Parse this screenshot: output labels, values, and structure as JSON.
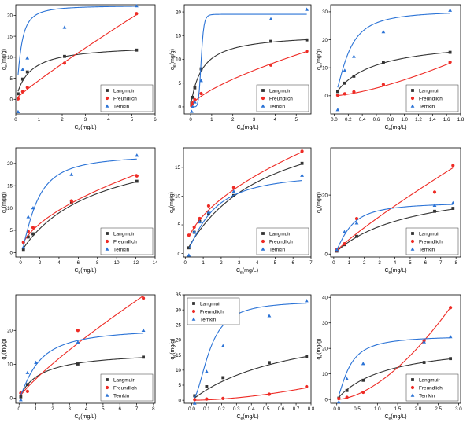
{
  "colors": {
    "Langmuir": "#333333",
    "Freundlich": "#ee2b25",
    "Temkin": "#2b73d6"
  },
  "chart_data": [
    {
      "type": "scatter",
      "x_label_main": "C",
      "x_label_sub": "e",
      "x_label_unit": "(mg/L)",
      "y_label_main": "q",
      "y_label_sub": "e",
      "y_label_unit": "(mg/g)",
      "xlim": [
        0,
        6
      ],
      "ylim": [
        -3.5,
        22.5
      ],
      "xticks": [
        0,
        1,
        2,
        3,
        4,
        5,
        6
      ],
      "yticks": [
        0,
        5,
        10,
        15,
        20
      ],
      "legend_position": "bottom-right",
      "series": [
        {
          "name": "Langmuir",
          "marker": "square",
          "x": [
            0.1,
            0.3,
            0.5,
            2.1,
            5.2
          ],
          "y": [
            1.3,
            4.8,
            6.5,
            10.2,
            11.7
          ],
          "curve": {
            "kind": "langmuir",
            "qm": 13.0,
            "K": 1.7
          }
        },
        {
          "name": "Freundlich",
          "marker": "circle",
          "x": [
            0.1,
            0.3,
            0.5,
            2.1,
            5.2
          ],
          "y": [
            0.1,
            1.8,
            2.8,
            8.6,
            20.4
          ],
          "curve": {
            "kind": "freundlich",
            "Kf": 4.5,
            "n": 1.1
          }
        },
        {
          "name": "Temkin",
          "marker": "triangle",
          "x": [
            0.1,
            0.3,
            0.5,
            2.1,
            5.2
          ],
          "y": [
            -3.0,
            7.1,
            9.8,
            17.1,
            22.2
          ],
          "curve": {
            "kind": "logistic",
            "A": 22.3,
            "k": 0.2,
            "p": 1.5
          }
        }
      ]
    },
    {
      "type": "scatter",
      "x_label_main": "C",
      "x_label_sub": "e",
      "x_label_unit": "(mg/L)",
      "y_label_main": "q",
      "y_label_sub": "e",
      "y_label_unit": "(mg/g)",
      "xlim": [
        -0.3,
        5.7
      ],
      "ylim": [
        -1.5,
        21.5
      ],
      "xticks": [
        0,
        1,
        2,
        3,
        4,
        5
      ],
      "yticks": [
        0,
        5,
        10,
        15,
        20
      ],
      "legend_position": "bottom-right",
      "series": [
        {
          "name": "Langmuir",
          "marker": "square",
          "x": [
            0.05,
            0.1,
            0.2,
            0.5,
            3.8,
            5.5
          ],
          "y": [
            0.8,
            2.0,
            4.0,
            8.0,
            13.8,
            14.1
          ],
          "curve": {
            "kind": "langmuir",
            "qm": 15.5,
            "K": 1.9
          }
        },
        {
          "name": "Freundlich",
          "marker": "circle",
          "x": [
            0.05,
            0.1,
            0.2,
            0.5,
            3.8,
            5.5
          ],
          "y": [
            0.2,
            0.8,
            1.5,
            2.8,
            8.8,
            11.7
          ],
          "curve": {
            "kind": "freundlich",
            "Kf": 3.6,
            "n": 1.45
          }
        },
        {
          "name": "Temkin",
          "marker": "triangle",
          "x": [
            0.05,
            0.1,
            0.2,
            0.5,
            3.8,
            5.5
          ],
          "y": [
            -1.0,
            0.0,
            1.0,
            5.5,
            18.5,
            20.5
          ],
          "curve": {
            "kind": "logistic",
            "A": 19.5,
            "k": 0.5,
            "p": 8
          }
        }
      ]
    },
    {
      "type": "scatter",
      "x_label_main": "C",
      "x_label_sub": "e",
      "x_label_unit": "(mg/L)",
      "y_label_main": "q",
      "y_label_sub": "e",
      "y_label_unit": "(mg/g)",
      "xlim": [
        -0.05,
        1.8
      ],
      "ylim": [
        -6.5,
        32.5
      ],
      "xticks": [
        0.0,
        0.2,
        0.4,
        0.6,
        0.8,
        1.0,
        1.2,
        1.4,
        1.6,
        1.8
      ],
      "yticks": [
        0,
        10,
        20,
        30
      ],
      "legend_position": "bottom-right",
      "series": [
        {
          "name": "Langmuir",
          "marker": "square",
          "x": [
            0.05,
            0.15,
            0.28,
            0.7,
            1.65
          ],
          "y": [
            1.5,
            4.5,
            7.0,
            11.8,
            15.5
          ],
          "curve": {
            "kind": "langmuir",
            "qm": 20.5,
            "K": 1.9
          }
        },
        {
          "name": "Freundlich",
          "marker": "circle",
          "x": [
            0.05,
            0.15,
            0.28,
            0.7,
            1.65
          ],
          "y": [
            0.2,
            0.7,
            1.4,
            4.0,
            12.0
          ],
          "curve": {
            "kind": "freundlich",
            "Kf": 5.7,
            "n": 0.7
          }
        },
        {
          "name": "Temkin",
          "marker": "triangle",
          "x": [
            0.05,
            0.15,
            0.28,
            0.7,
            1.65
          ],
          "y": [
            -5.0,
            9.0,
            14.0,
            22.8,
            30.5
          ],
          "curve": {
            "kind": "logistic",
            "A": 30.5,
            "k": 0.2,
            "p": 1.6
          }
        }
      ]
    },
    {
      "type": "scatter",
      "x_label_main": "C",
      "x_label_sub": "e",
      "x_label_unit": "(mg/L)",
      "y_label_main": "q",
      "y_label_sub": "e",
      "y_label_unit": "(mg/g)",
      "xlim": [
        -0.5,
        14
      ],
      "ylim": [
        -1,
        23.5
      ],
      "xticks": [
        0,
        2,
        4,
        6,
        8,
        10,
        12,
        14
      ],
      "yticks": [
        0,
        5,
        10,
        15,
        20
      ],
      "legend_position": "bottom-right",
      "series": [
        {
          "name": "Langmuir",
          "marker": "square",
          "x": [
            0.3,
            0.8,
            1.3,
            5.3,
            12.1
          ],
          "y": [
            0.7,
            3.5,
            4.2,
            11.2,
            16.0
          ],
          "curve": {
            "kind": "langmuir",
            "qm": 26,
            "K": 0.13
          }
        },
        {
          "name": "Freundlich",
          "marker": "circle",
          "x": [
            0.3,
            0.8,
            1.3,
            5.3,
            12.1
          ],
          "y": [
            2.3,
            4.7,
            5.6,
            11.6,
            17.2
          ],
          "curve": {
            "kind": "freundlich",
            "Kf": 4.4,
            "n": 1.8
          }
        },
        {
          "name": "Temkin",
          "marker": "triangle",
          "x": [
            0.3,
            0.8,
            1.3,
            5.3,
            12.1
          ],
          "y": [
            1.2,
            8.0,
            10.0,
            17.5,
            21.8
          ],
          "curve": {
            "kind": "logistic",
            "A": 22.0,
            "k": 1.6,
            "p": 1.5
          }
        }
      ]
    },
    {
      "type": "scatter",
      "x_label_main": "C",
      "x_label_sub": "e",
      "x_label_unit": "(mg/L)",
      "y_label_main": "q",
      "y_label_sub": "e",
      "y_label_unit": "(mg/g)",
      "xlim": [
        -0.1,
        7
      ],
      "ylim": [
        -0.6,
        18.4
      ],
      "xticks": [
        0,
        1,
        2,
        3,
        4,
        5,
        6,
        7
      ],
      "yticks": [
        0,
        5,
        10,
        15
      ],
      "legend_position": "bottom-right",
      "series": [
        {
          "name": "Langmuir",
          "marker": "square",
          "x": [
            0.2,
            0.5,
            0.8,
            1.3,
            2.7,
            6.5
          ],
          "y": [
            1.0,
            3.7,
            5.6,
            7.0,
            10.1,
            15.7
          ],
          "curve": {
            "kind": "langmuir",
            "qm": 26,
            "K": 0.23
          }
        },
        {
          "name": "Freundlich",
          "marker": "circle",
          "x": [
            0.2,
            0.5,
            0.8,
            1.3,
            2.7,
            6.5
          ],
          "y": [
            3.2,
            4.6,
            6.1,
            8.3,
            11.5,
            17.8
          ],
          "curve": {
            "kind": "freundlich",
            "Kf": 6.6,
            "n": 1.9
          }
        },
        {
          "name": "Temkin",
          "marker": "triangle",
          "x": [
            0.2,
            0.5,
            0.8,
            1.3,
            2.7,
            6.5
          ],
          "y": [
            -0.3,
            3.8,
            5.5,
            7.2,
            10.8,
            13.6
          ],
          "curve": {
            "kind": "logistic",
            "A": 14.2,
            "k": 1.4,
            "p": 1.4
          }
        }
      ]
    },
    {
      "type": "scatter",
      "x_label_main": "C",
      "x_label_sub": "e",
      "x_label_unit": "(mg/L)",
      "y_label_main": "q",
      "y_label_sub": "e",
      "y_label_unit": "(mg/g)",
      "xlim": [
        -0.2,
        8.3
      ],
      "ylim": [
        -1,
        36
      ],
      "xticks": [
        0,
        1,
        2,
        3,
        4,
        5,
        6,
        7,
        8
      ],
      "yticks": [
        0,
        20
      ],
      "legend_position": "bottom-right",
      "series": [
        {
          "name": "Langmuir",
          "marker": "square",
          "x": [
            0.2,
            0.7,
            1.5,
            6.6,
            7.8
          ],
          "y": [
            1.0,
            3.2,
            6.0,
            14.5,
            15.5
          ],
          "curve": {
            "kind": "langmuir",
            "qm": 25,
            "K": 0.2
          }
        },
        {
          "name": "Freundlich",
          "marker": "circle",
          "x": [
            0.2,
            0.7,
            1.5,
            6.6,
            7.8
          ],
          "y": [
            1.5,
            3.5,
            12.0,
            21.0,
            30.0
          ],
          "curve": {
            "kind": "freundlich",
            "Kf": 4.9,
            "n": 1.15
          }
        },
        {
          "name": "Temkin",
          "marker": "triangle",
          "x": [
            0.2,
            0.7,
            1.5,
            6.6,
            7.8
          ],
          "y": [
            1.5,
            7.5,
            10.5,
            16.5,
            17.3
          ],
          "curve": {
            "kind": "logistic",
            "A": 17.6,
            "k": 1.0,
            "p": 1.5
          }
        }
      ]
    },
    {
      "type": "scatter",
      "x_label_main": "C",
      "x_label_sub": "e",
      "x_label_unit": "(mg/L)",
      "y_label_main": "q",
      "y_label_sub": "e",
      "y_label_unit": "(mg/g)",
      "xlim": [
        -0.2,
        8.1
      ],
      "ylim": [
        -1.5,
        30.5
      ],
      "xticks": [
        0,
        1,
        2,
        3,
        4,
        5,
        6,
        7,
        8
      ],
      "yticks": [
        0,
        10,
        20
      ],
      "legend_position": "bottom-right",
      "series": [
        {
          "name": "Langmuir",
          "marker": "square",
          "x": [
            0.1,
            0.5,
            3.5,
            7.4
          ],
          "y": [
            0.4,
            4.0,
            10.1,
            12.1
          ],
          "curve": {
            "kind": "langmuir",
            "qm": 14,
            "K": 0.8
          }
        },
        {
          "name": "Freundlich",
          "marker": "circle",
          "x": [
            0.1,
            0.5,
            3.5,
            7.4
          ],
          "y": [
            1.5,
            2.0,
            20.0,
            29.5
          ],
          "curve": {
            "kind": "freundlich",
            "Kf": 5.7,
            "n": 1.2
          }
        },
        {
          "name": "Temkin",
          "marker": "triangle",
          "x": [
            0.1,
            0.5,
            1.0,
            3.5,
            7.4
          ],
          "y": [
            -0.5,
            7.5,
            10.5,
            16.5,
            20.0
          ],
          "curve": {
            "kind": "logistic",
            "A": 20.8,
            "k": 1.1,
            "p": 1.3
          }
        }
      ]
    },
    {
      "type": "scatter",
      "x_label_main": "C",
      "x_label_sub": "e",
      "x_label_unit": "(mg/L)",
      "y_label_main": "q",
      "y_label_sub": "e",
      "y_label_unit": "(mg/g)",
      "xlim": [
        -0.05,
        0.8
      ],
      "ylim": [
        -1,
        35
      ],
      "xticks": [
        0.0,
        0.1,
        0.2,
        0.3,
        0.4,
        0.5,
        0.6,
        0.7,
        0.8
      ],
      "yticks": [
        0,
        5,
        10,
        15,
        20,
        25,
        30,
        35
      ],
      "legend_position": "top-left",
      "series": [
        {
          "name": "Langmuir",
          "marker": "square",
          "x": [
            0.02,
            0.1,
            0.21,
            0.52,
            0.77
          ],
          "y": [
            1.5,
            4.5,
            7.5,
            12.5,
            14.5
          ],
          "curve": {
            "kind": "langmuir",
            "qm": 28,
            "K": 1.4
          }
        },
        {
          "name": "Freundlich",
          "marker": "circle",
          "x": [
            0.02,
            0.1,
            0.21,
            0.52,
            0.77
          ],
          "y": [
            0.2,
            0.4,
            0.6,
            2.0,
            4.5
          ],
          "curve": {
            "kind": "freundlich",
            "Kf": 6.5,
            "n": 0.58
          }
        },
        {
          "name": "Temkin",
          "marker": "triangle",
          "x": [
            0.02,
            0.1,
            0.21,
            0.52,
            0.77
          ],
          "y": [
            -1.0,
            9.5,
            18.0,
            28.0,
            33.0
          ],
          "curve": {
            "kind": "logistic",
            "A": 33.0,
            "k": 0.12,
            "p": 2.0
          }
        }
      ]
    },
    {
      "type": "scatter",
      "x_label_main": "C",
      "x_label_sub": "e",
      "x_label_unit": "(mg/L)",
      "y_label_main": "q",
      "y_label_sub": "e",
      "y_label_unit": "(mg/g)",
      "xlim": [
        -0.15,
        3.05
      ],
      "ylim": [
        -1.5,
        41
      ],
      "xticks": [
        0.0,
        0.5,
        1.0,
        1.5,
        2.0,
        2.5,
        3.0
      ],
      "yticks": [
        0,
        10,
        20,
        30,
        40
      ],
      "legend_position": "bottom-right",
      "series": [
        {
          "name": "Langmuir",
          "marker": "square",
          "x": [
            0.05,
            0.25,
            0.65,
            2.15,
            2.8
          ],
          "y": [
            0.5,
            3.5,
            7.5,
            14.5,
            16.0
          ],
          "curve": {
            "kind": "langmuir",
            "qm": 23,
            "K": 0.8
          }
        },
        {
          "name": "Freundlich",
          "marker": "circle",
          "x": [
            0.05,
            0.25,
            0.65,
            2.15,
            2.8
          ],
          "y": [
            0.3,
            0.8,
            2.8,
            23.0,
            36.0
          ],
          "curve": {
            "kind": "freundlich",
            "Kf": 6.3,
            "n": 0.59
          }
        },
        {
          "name": "Temkin",
          "marker": "triangle",
          "x": [
            0.05,
            0.25,
            0.65,
            2.15,
            2.8
          ],
          "y": [
            -1.0,
            8.0,
            14.0,
            22.5,
            24.5
          ],
          "curve": {
            "kind": "logistic",
            "A": 25.0,
            "k": 0.3,
            "p": 1.5
          }
        }
      ]
    }
  ]
}
